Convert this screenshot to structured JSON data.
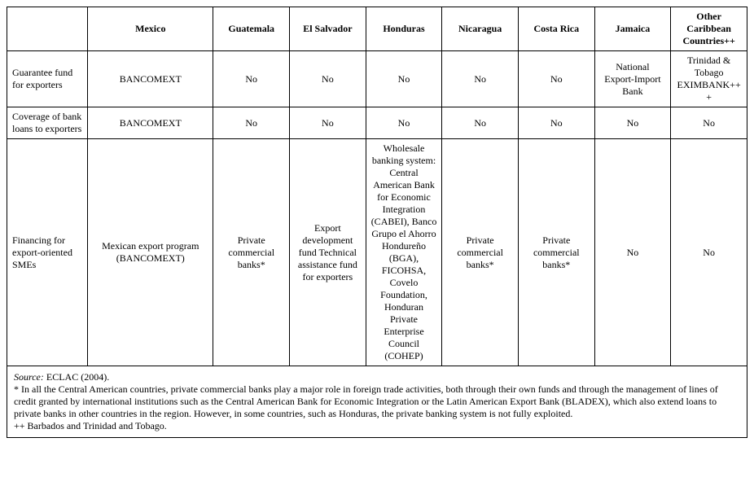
{
  "table": {
    "columns": [
      "",
      "Mexico",
      "Guatemala",
      "El Salvador",
      "Honduras",
      "Nicaragua",
      "Costa Rica",
      "Jamaica",
      "Other Caribbean Countries++"
    ],
    "rows": [
      {
        "label": "Guarantee fund for exporters",
        "cells": [
          "BANCOMEXT",
          "No",
          "No",
          "No",
          "No",
          "No",
          "National Export-Import Bank",
          "Trinidad & Tobago EXIMBANK+++"
        ]
      },
      {
        "label": "Coverage of bank loans to exporters",
        "cells": [
          "BANCOMEXT",
          "No",
          "No",
          "No",
          "No",
          "No",
          "No",
          "No"
        ]
      },
      {
        "label": "Financing for export-oriented SMEs",
        "cells": [
          "Mexican export program (BANCOMEXT)",
          "Private commercial banks*",
          "Export development fund Technical assistance fund for exporters",
          "Wholesale banking system: Central American Bank for Economic Integration (CABEI), Banco Grupo el Ahorro Hondureño (BGA), FICOHSA, Covelo Foundation, Honduran Private Enterprise Council (COHEP)",
          "Private commercial banks*",
          "Private commercial banks*",
          "No",
          "No"
        ]
      }
    ],
    "footnotes": {
      "source_label": "Source:",
      "source_text": " ECLAC (2004).",
      "note_star": "* In all the Central American countries, private commercial banks play a major role in foreign trade activities, both through their own funds and through the management of lines of credit granted by international institutions such as the Central American Bank for Economic Integration or the Latin American Export Bank (BLADEX), which also extend loans to private banks in other countries in the region. However, in some countries, such as Honduras, the private banking system is not fully exploited.",
      "note_plus": "++  Barbados and Trinidad and Tobago."
    }
  }
}
